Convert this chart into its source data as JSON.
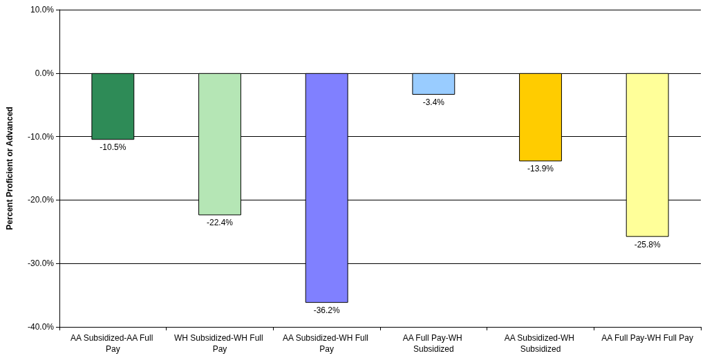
{
  "chart_data": {
    "type": "bar",
    "ylabel": "Percent Proficient or Advanced",
    "categories": [
      "AA Subsidized-AA Full Pay",
      "WH Subsidized-WH Full Pay",
      "AA Subsidized-WH Full Pay",
      "AA Full Pay-WH Subsidized",
      "AA Subsidized-WH Subsidized",
      "AA Full Pay-WH Full Pay"
    ],
    "values": [
      -10.5,
      -22.4,
      -36.2,
      -3.4,
      -13.9,
      -25.8
    ],
    "value_labels": [
      "-10.5%",
      "-22.4%",
      "-36.2%",
      "-3.4%",
      "-13.9%",
      "-25.8%"
    ],
    "colors": [
      "#2e8b57",
      "#b5e6b5",
      "#8080ff",
      "#99ccff",
      "#ffcc00",
      "#ffff99"
    ],
    "ylim": [
      -40,
      10
    ],
    "yticks": [
      {
        "value": -40,
        "label": "-40.0%"
      },
      {
        "value": -30,
        "label": "-30.0%"
      },
      {
        "value": -20,
        "label": "-20.0%"
      },
      {
        "value": -10,
        "label": "-10.0%"
      },
      {
        "value": 0,
        "label": "0.0%"
      },
      {
        "value": 10,
        "label": "10.0%"
      }
    ],
    "grid": "y"
  }
}
